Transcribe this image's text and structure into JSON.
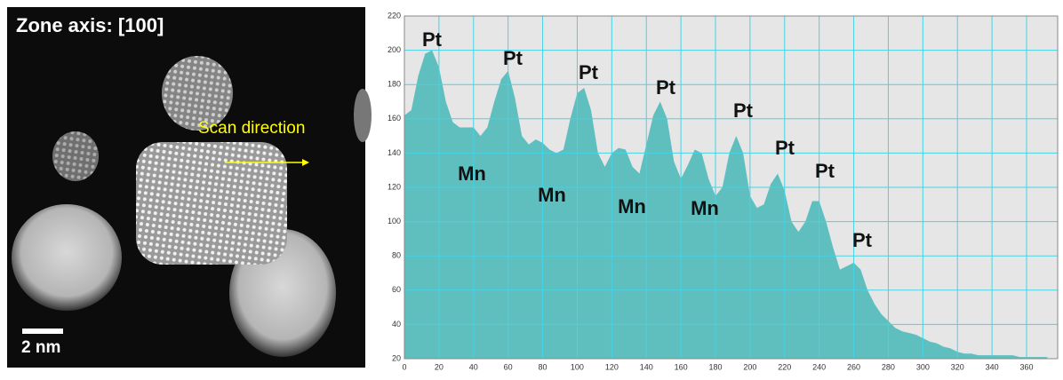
{
  "image": {
    "title": "Zone axis: [100]",
    "annotation": "Scan direction",
    "scale_bar": "2 nm"
  },
  "chart_data": {
    "type": "area",
    "color": "#5fbfbf",
    "background": "#e6e6e6",
    "grid": true,
    "grid_color": "#45d3e6",
    "annotations": [
      "Pt",
      "Mn",
      "Pt",
      "Mn",
      "Pt",
      "Mn",
      "Pt",
      "Mn",
      "Pt",
      "Pt",
      "Pt",
      "Pt"
    ],
    "x": [
      0,
      4,
      8,
      12,
      16,
      20,
      24,
      28,
      32,
      36,
      40,
      44,
      48,
      52,
      56,
      60,
      64,
      68,
      72,
      76,
      80,
      84,
      88,
      92,
      96,
      100,
      104,
      108,
      112,
      116,
      120,
      124,
      128,
      132,
      136,
      140,
      144,
      148,
      152,
      156,
      160,
      164,
      168,
      172,
      176,
      180,
      184,
      188,
      192,
      196,
      200,
      204,
      208,
      212,
      216,
      220,
      224,
      228,
      232,
      236,
      240,
      244,
      248,
      252,
      256,
      260,
      264,
      268,
      272,
      276,
      280,
      284,
      288,
      292,
      296,
      300,
      304,
      308,
      312,
      316,
      320,
      324,
      328,
      332,
      336,
      340,
      344,
      348,
      352,
      356,
      360,
      364,
      368,
      372
    ],
    "values": [
      162,
      165,
      185,
      198,
      200,
      190,
      170,
      158,
      155,
      155,
      155,
      150,
      155,
      170,
      183,
      188,
      172,
      150,
      145,
      148,
      146,
      142,
      140,
      142,
      160,
      175,
      178,
      165,
      140,
      132,
      140,
      143,
      142,
      132,
      128,
      145,
      162,
      170,
      160,
      135,
      125,
      133,
      142,
      140,
      125,
      115,
      120,
      140,
      150,
      140,
      115,
      108,
      110,
      122,
      128,
      118,
      100,
      94,
      100,
      112,
      112,
      100,
      85,
      72,
      74,
      76,
      72,
      60,
      52,
      46,
      42,
      38,
      36,
      35,
      34,
      32,
      30,
      29,
      27,
      26,
      24,
      23,
      23,
      22,
      22,
      22,
      22,
      22,
      22,
      21,
      21,
      21,
      21,
      21
    ],
    "xlim": [
      0,
      378
    ],
    "ylim": [
      20,
      220
    ],
    "xticks": [
      0,
      20,
      40,
      60,
      80,
      100,
      120,
      140,
      160,
      180,
      200,
      220,
      240,
      260,
      280,
      300,
      320,
      340,
      360
    ],
    "yticks": [
      20,
      40,
      60,
      80,
      100,
      120,
      140,
      160,
      180,
      200,
      220
    ]
  }
}
